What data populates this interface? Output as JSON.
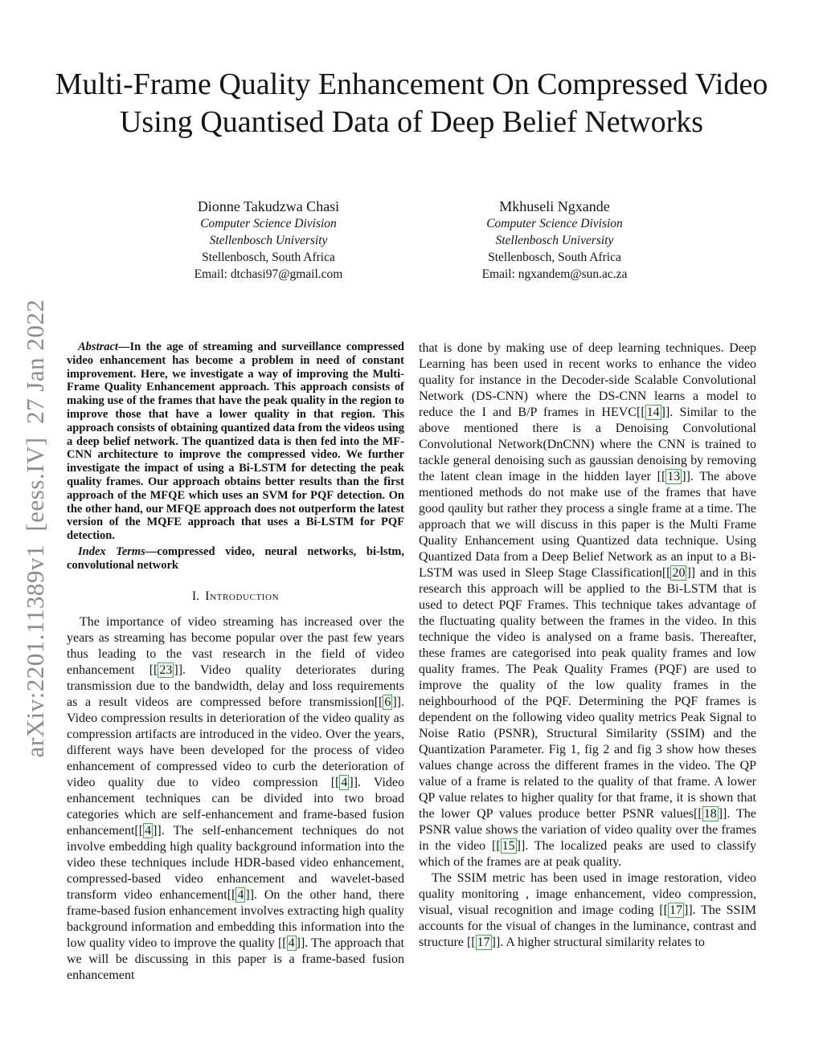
{
  "watermark": "arXiv:2201.11389v1  [eess.IV]  27 Jan 2022",
  "title": "Multi-Frame Quality Enhancement On Compressed Video Using Quantised Data of Deep Belief Networks",
  "authors": [
    {
      "name": "Dionne Takudzwa Chasi",
      "division": "Computer Science Division",
      "university": "Stellenbosch University",
      "location": "Stellenbosch, South Africa",
      "email": "Email: dtchasi97@gmail.com"
    },
    {
      "name": "Mkhuseli Ngxande",
      "division": "Computer Science Division",
      "university": "Stellenbosch University",
      "location": "Stellenbosch, South Africa",
      "email": "Email: ngxandem@sun.ac.za"
    }
  ],
  "abstract": {
    "label": "Abstract",
    "text": "—In the age of streaming and surveillance compressed video enhancement has become a problem in need of constant improvement. Here, we investigate a way of improving the Multi-Frame Quality Enhancement approach. This approach consists of making use of the frames that have the peak quality in the region to improve those that have a lower quality in that region. This approach consists of obtaining quantized data from the videos using a deep belief network. The quantized data is then fed into the MF-CNN architecture to improve the compressed video. We further investigate the impact of using a Bi-LSTM for detecting the peak quality frames. Our approach obtains better results than the first approach of the MFQE which uses an SVM for PQF detection. On the other hand, our MFQE approach does not outperform the latest version of the MQFE approach that uses a Bi-LSTM for PQF detection."
  },
  "index_terms": {
    "label": "Index Terms",
    "text": "—compressed video, neural networks, bi-lstm, convolutional network"
  },
  "section_intro": {
    "number": "I.",
    "title": "Introduction"
  },
  "intro_left": [
    {
      "t": "The importance of video streaming has increased over the years as streaming has become popular over the past few years thus leading to the vast research in the field of video enhancement ["
    },
    {
      "c": "23"
    },
    {
      "t": "]. Video quality deteriorates during transmission due to the bandwidth, delay and loss requirements as a result videos are compressed before transmission["
    },
    {
      "c": "6"
    },
    {
      "t": "]. Video compression results in deterioration of the video quality as compression artifacts are introduced in the video. Over the years, different ways have been developed for the process of video enhancement of compressed video to curb the deterioration of video quality due to video compression ["
    },
    {
      "c": "4"
    },
    {
      "t": "]. Video enhancement techniques can be divided into two broad categories which are self-enhancement and frame-based fusion enhancement["
    },
    {
      "c": "4"
    },
    {
      "t": "]. The self-enhancement techniques do not involve embedding high quality background information into the video these techniques include HDR-based video enhancement, compressed-based video enhancement and wavelet-based transform video enhancement["
    },
    {
      "c": "4"
    },
    {
      "t": "]. On the other hand, there frame-based fusion enhancement involves extracting high quality background information and embedding this information into the low quality video to improve the quality ["
    },
    {
      "c": "4"
    },
    {
      "t": "]. The approach that we will be discussing in this paper is a frame-based fusion enhancement"
    }
  ],
  "intro_right_1": [
    {
      "t": "that is done by making use of deep learning techniques. Deep Learning has been used in recent works to enhance the video quality for instance in the Decoder-side Scalable Convolutional Network (DS-CNN) where the DS-CNN learns a model to reduce the I and B/P frames in HEVC["
    },
    {
      "c": "14"
    },
    {
      "t": "]. Similar to the above mentioned there is a Denoising Convolutional Convolutional Network(DnCNN) where the CNN is trained to tackle general denoising such as gaussian denoising by removing the latent clean image in the hidden layer ["
    },
    {
      "c": "13"
    },
    {
      "t": "]. The above mentioned methods do not make use of the frames that have good qaulity but rather they process a single frame at a time. The approach that we will discuss in this paper is the Multi Frame Quality Enhancement using Quantized data technique. Using Quantized Data from a Deep Belief Network as an input to a Bi-LSTM was used in Sleep Stage Classification["
    },
    {
      "c": "20"
    },
    {
      "t": "] and in this research this approach will be applied to the Bi-LSTM that is used to detect PQF Frames. This technique takes advantage of the fluctuating quality between the frames in the video. In this technique the video is analysed on a frame basis. Thereafter, these frames are categorised into peak quality frames and low quality frames. The Peak Quality Frames (PQF) are used to improve the quality of the low quality frames in the neighbourhood of the PQF. Determining the PQF frames is dependent on the following video quality metrics Peak Signal to Noise Ratio (PSNR), Structural Similarity (SSIM) and the Quantization Parameter. Fig 1, fig 2 and fig 3 show how theses values change across the different frames in the video. The QP value of a frame is related to the quality of that frame. A lower QP value relates to higher quality for that frame, it is shown that the lower QP values produce better PSNR values["
    },
    {
      "c": "18"
    },
    {
      "t": "]. The PSNR value shows the variation of video quality over the frames in the video ["
    },
    {
      "c": "15"
    },
    {
      "t": "]. The localized peaks are used to classify which of the frames are at peak quality."
    }
  ],
  "intro_right_2": [
    {
      "t": "The SSIM metric has been used in image restoration, video quality monitoring , image enhancement, video compression, visual, visual recognition and image coding ["
    },
    {
      "c": "17"
    },
    {
      "t": "]. The SSIM accounts for the visual of changes in the luminance, contrast and structure ["
    },
    {
      "c": "17"
    },
    {
      "t": "]. A higher structural similarity relates to"
    }
  ]
}
